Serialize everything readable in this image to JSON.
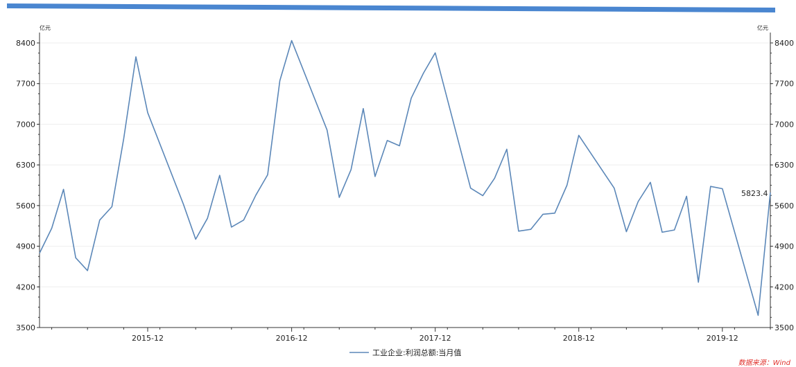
{
  "chart_data": {
    "type": "line",
    "unit_left": "亿元",
    "unit_right": "亿元",
    "ylim": [
      3500,
      8400
    ],
    "yticks": [
      3500,
      4200,
      4900,
      5600,
      6300,
      7000,
      7700,
      8400
    ],
    "x_tick_labels": [
      "2015-12",
      "2016-12",
      "2017-12",
      "2018-12",
      "2019-12"
    ],
    "series": [
      {
        "name": "工业企业:利润总额:当月值",
        "color": "#5b87b8",
        "x": [
          "2015-03",
          "2015-04",
          "2015-05",
          "2015-06",
          "2015-07",
          "2015-08",
          "2015-09",
          "2015-10",
          "2015-11",
          "2015-12",
          "2016-03",
          "2016-04",
          "2016-05",
          "2016-06",
          "2016-07",
          "2016-08",
          "2016-09",
          "2016-10",
          "2016-11",
          "2016-12",
          "2017-03",
          "2017-04",
          "2017-05",
          "2017-06",
          "2017-07",
          "2017-08",
          "2017-09",
          "2017-10",
          "2017-11",
          "2017-12",
          "2018-03",
          "2018-04",
          "2018-05",
          "2018-06",
          "2018-07",
          "2018-08",
          "2018-09",
          "2018-10",
          "2018-11",
          "2018-12",
          "2019-03",
          "2019-04",
          "2019-05",
          "2019-06",
          "2019-07",
          "2019-08",
          "2019-09",
          "2019-10",
          "2019-11",
          "2019-12",
          "2020-03",
          "2020-04"
        ],
        "values": [
          4780,
          5210,
          5880,
          4700,
          4480,
          5350,
          5580,
          6750,
          8160,
          7200,
          5620,
          5020,
          5380,
          6120,
          5230,
          5350,
          5780,
          6130,
          7750,
          8440,
          6900,
          5740,
          6220,
          7270,
          6100,
          6720,
          6630,
          7450,
          7880,
          8230,
          5900,
          5770,
          6070,
          6570,
          5160,
          5190,
          5450,
          5470,
          5950,
          6810,
          5900,
          5150,
          5670,
          6000,
          5140,
          5180,
          5760,
          4280,
          5930,
          5890,
          3710,
          5823.4
        ]
      }
    ],
    "last_value_label": "5823.4",
    "grid": "horizontal-light",
    "legend_position": "bottom-center",
    "source_note": "数据来源：Wind"
  }
}
